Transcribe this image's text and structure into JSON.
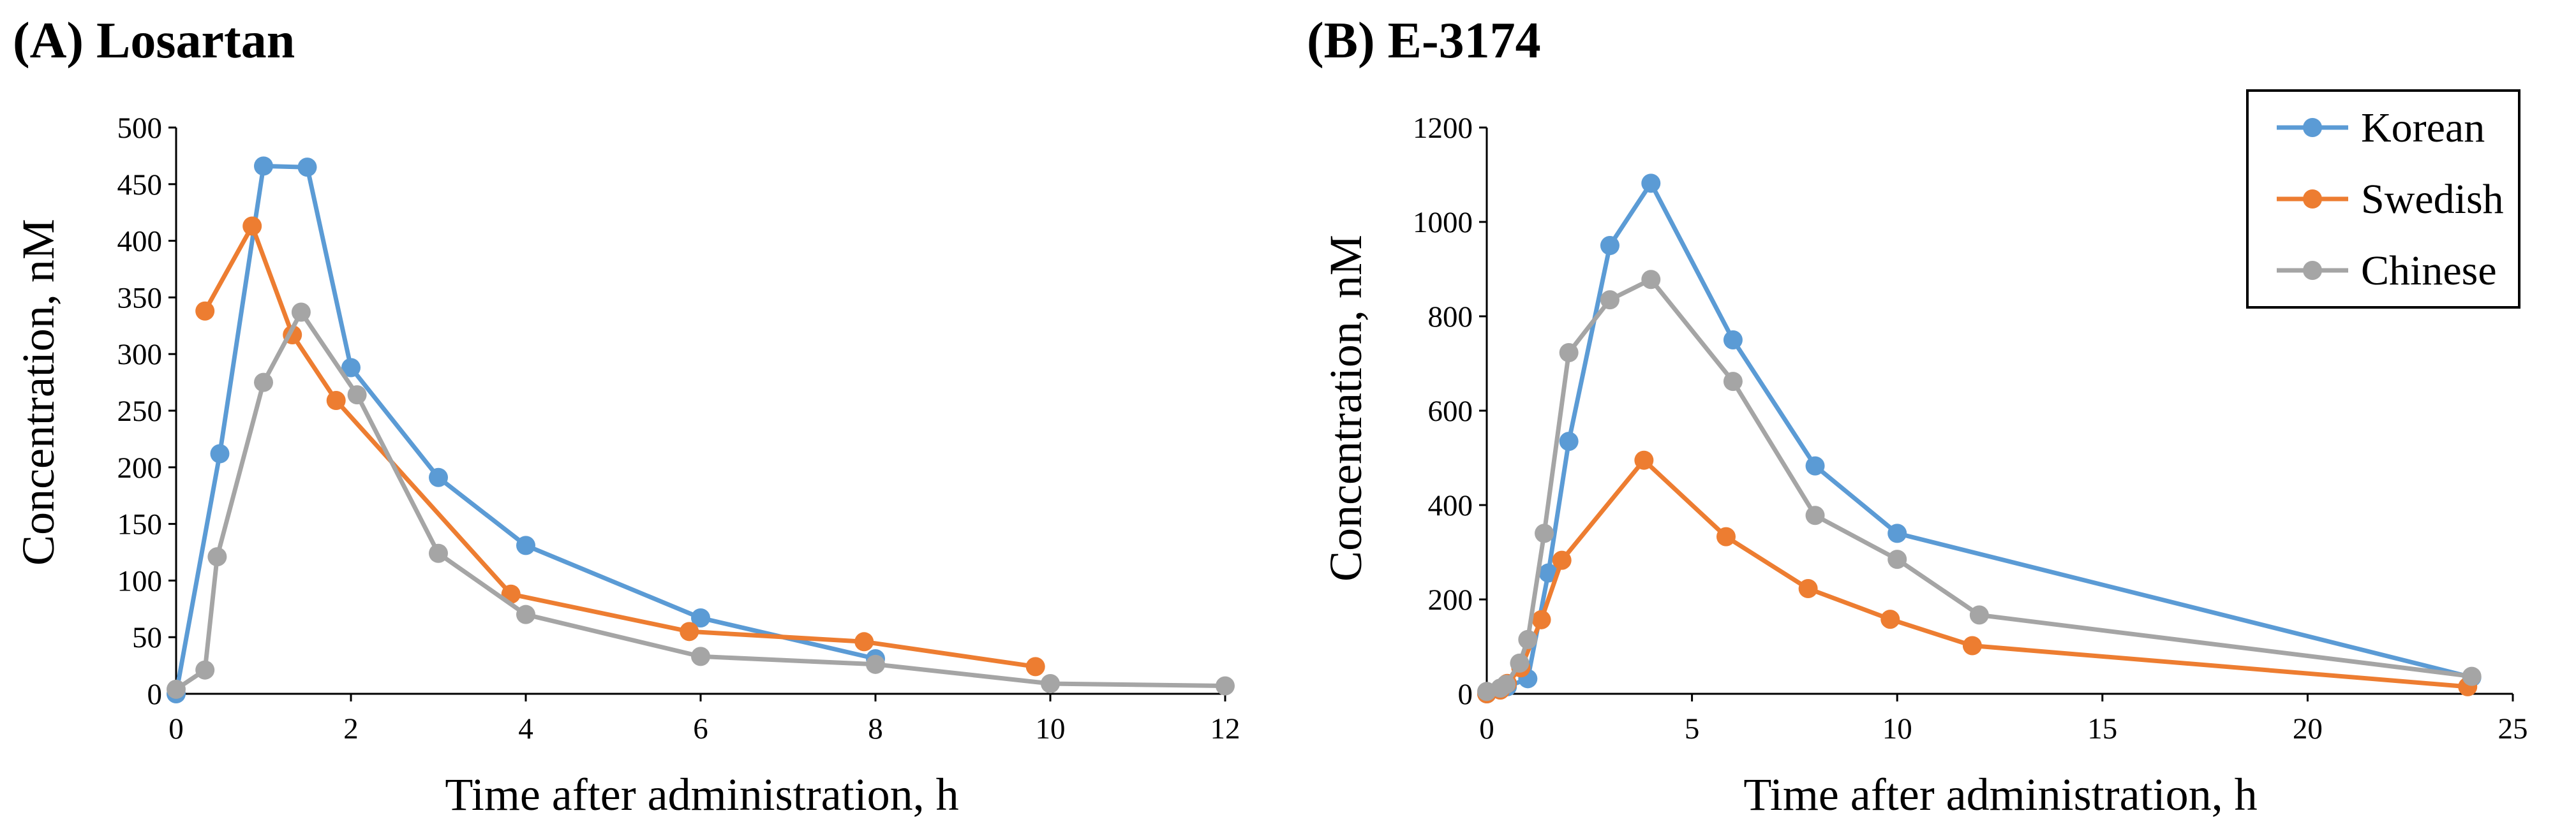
{
  "chart_data": [
    {
      "type": "line",
      "title": "(A) Losartan",
      "xlabel": "Time after administration, h",
      "ylabel": "Concentration, nM",
      "xlim": [
        0,
        12
      ],
      "ylim": [
        0,
        500
      ],
      "xticks": [
        0,
        2,
        4,
        6,
        8,
        10,
        12
      ],
      "yticks": [
        0,
        50,
        100,
        150,
        200,
        250,
        300,
        350,
        400,
        450,
        500
      ],
      "grid": false,
      "legend": null,
      "series": [
        {
          "name": "Korean",
          "color": "#5B9BD5",
          "x": [
            0,
            0.5,
            1,
            1.5,
            2,
            3,
            4,
            6,
            8
          ],
          "y": [
            0,
            212,
            466,
            465,
            288,
            191,
            131,
            67,
            31
          ]
        },
        {
          "name": "Swedish",
          "color": "#ED7D31",
          "x": [
            0.33,
            0.87,
            1.33,
            1.83,
            3.83,
            5.87,
            7.87,
            9.83
          ],
          "y": [
            338,
            413,
            317,
            259,
            88,
            55,
            46,
            24
          ]
        },
        {
          "name": "Chinese",
          "color": "#A5A5A5",
          "x": [
            0,
            0.33,
            0.47,
            1,
            1.43,
            2.07,
            3,
            4,
            6,
            8,
            10,
            12
          ],
          "y": [
            4,
            21,
            121,
            275,
            337,
            264,
            124,
            70,
            33,
            26,
            9,
            7
          ]
        }
      ]
    },
    {
      "type": "line",
      "title": "(B) E-3174",
      "xlabel": "Time after administration, h",
      "ylabel": "Concentration, nM",
      "xlim": [
        0,
        25
      ],
      "ylim": [
        0,
        1200
      ],
      "xticks": [
        0,
        5,
        10,
        15,
        20,
        25
      ],
      "yticks": [
        0,
        200,
        400,
        600,
        800,
        1000,
        1200
      ],
      "grid": false,
      "legend": "top-right",
      "series": [
        {
          "name": "Korean",
          "color": "#5B9BD5",
          "x": [
            0,
            0.5,
            1,
            1.5,
            2,
            3,
            4,
            6,
            8,
            10,
            24
          ],
          "y": [
            0,
            15,
            32,
            256,
            535,
            950,
            1082,
            750,
            483,
            340,
            35
          ]
        },
        {
          "name": "Swedish",
          "color": "#ED7D31",
          "x": [
            0,
            0.33,
            0.5,
            0.83,
            1.33,
            1.83,
            3.83,
            5.83,
            7.83,
            9.83,
            11.83,
            23.9
          ],
          "y": [
            0,
            8,
            22,
            55,
            157,
            283,
            495,
            333,
            223,
            158,
            102,
            15
          ]
        },
        {
          "name": "Chinese",
          "color": "#A5A5A5",
          "x": [
            0,
            0.33,
            0.47,
            0.8,
            1,
            1.4,
            2,
            3,
            4,
            6,
            8,
            10,
            12,
            24
          ],
          "y": [
            5,
            12,
            20,
            65,
            115,
            340,
            723,
            835,
            878,
            662,
            378,
            285,
            167,
            37
          ]
        }
      ]
    }
  ]
}
